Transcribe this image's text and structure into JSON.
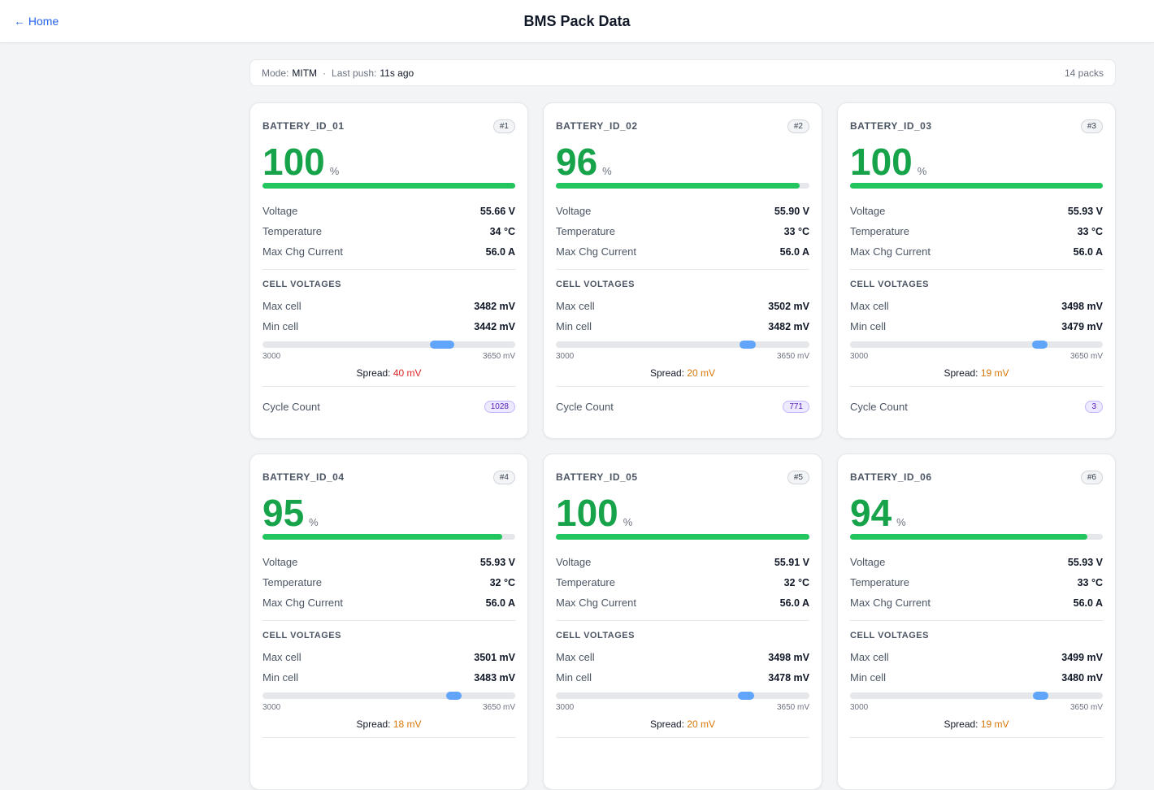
{
  "header": {
    "back": "← Home",
    "title": "BMS Pack Data"
  },
  "status": {
    "mode_label": "Mode:",
    "mode": "MITM",
    "separator": "·",
    "push_label": "Last push:",
    "push": "11s ago",
    "packs": "14 packs"
  },
  "labels": {
    "percent": "%",
    "voltage": "Voltage",
    "temperature": "Temperature",
    "max_chg": "Max Chg Current",
    "cell_voltages": "CELL VOLTAGES",
    "max_cell": "Max cell",
    "min_cell": "Min cell",
    "spread": "Spread:",
    "cycle_count": "Cycle Count"
  },
  "cell_range": [
    3000,
    {
      "value": 3650,
      "label": "3650 mV"
    }
  ],
  "cards": [
    {
      "name": "BATTERY_ID_01",
      "badge": "#1",
      "soc": 100,
      "voltage": "55.66 V",
      "temperature": "34 °C",
      "max_chg": "56.0 A",
      "max_cell": {
        "value": 3482,
        "label": "3482 mV"
      },
      "min_cell": {
        "value": 3442,
        "label": "3442 mV"
      },
      "spread": "40 mV",
      "spread_color": "#dc2626",
      "cycle_count": 1028
    },
    {
      "name": "BATTERY_ID_02",
      "badge": "#2",
      "soc": 96,
      "voltage": "55.90 V",
      "temperature": "33 °C",
      "max_chg": "56.0 A",
      "max_cell": {
        "value": 3502,
        "label": "3502 mV"
      },
      "min_cell": {
        "value": 3482,
        "label": "3482 mV"
      },
      "spread": "20 mV",
      "spread_color": "#d97706",
      "cycle_count": 771
    },
    {
      "name": "BATTERY_ID_03",
      "badge": "#3",
      "soc": 100,
      "voltage": "55.93 V",
      "temperature": "33 °C",
      "max_chg": "56.0 A",
      "max_cell": {
        "value": 3498,
        "label": "3498 mV"
      },
      "min_cell": {
        "value": 3479,
        "label": "3479 mV"
      },
      "spread": "19 mV",
      "spread_color": "#d97706",
      "cycle_count": 3
    },
    {
      "name": "BATTERY_ID_04",
      "badge": "#4",
      "soc": 95,
      "voltage": "55.93 V",
      "temperature": "32 °C",
      "max_chg": "56.0 A",
      "max_cell": {
        "value": 3501,
        "label": "3501 mV"
      },
      "min_cell": {
        "value": 3483,
        "label": "3483 mV"
      },
      "spread": "18 mV",
      "spread_color": "#d97706"
    },
    {
      "name": "BATTERY_ID_05",
      "badge": "#5",
      "soc": 100,
      "voltage": "55.91 V",
      "temperature": "32 °C",
      "max_chg": "56.0 A",
      "max_cell": {
        "value": 3498,
        "label": "3498 mV"
      },
      "min_cell": {
        "value": 3478,
        "label": "3478 mV"
      },
      "spread": "20 mV",
      "spread_color": "#d97706"
    },
    {
      "name": "BATTERY_ID_06",
      "badge": "#6",
      "soc": 94,
      "voltage": "55.93 V",
      "temperature": "33 °C",
      "max_chg": "56.0 A",
      "max_cell": {
        "value": 3499,
        "label": "3499 mV"
      },
      "min_cell": {
        "value": 3480,
        "label": "3480 mV"
      },
      "spread": "19 mV",
      "spread_color": "#d97706"
    }
  ]
}
